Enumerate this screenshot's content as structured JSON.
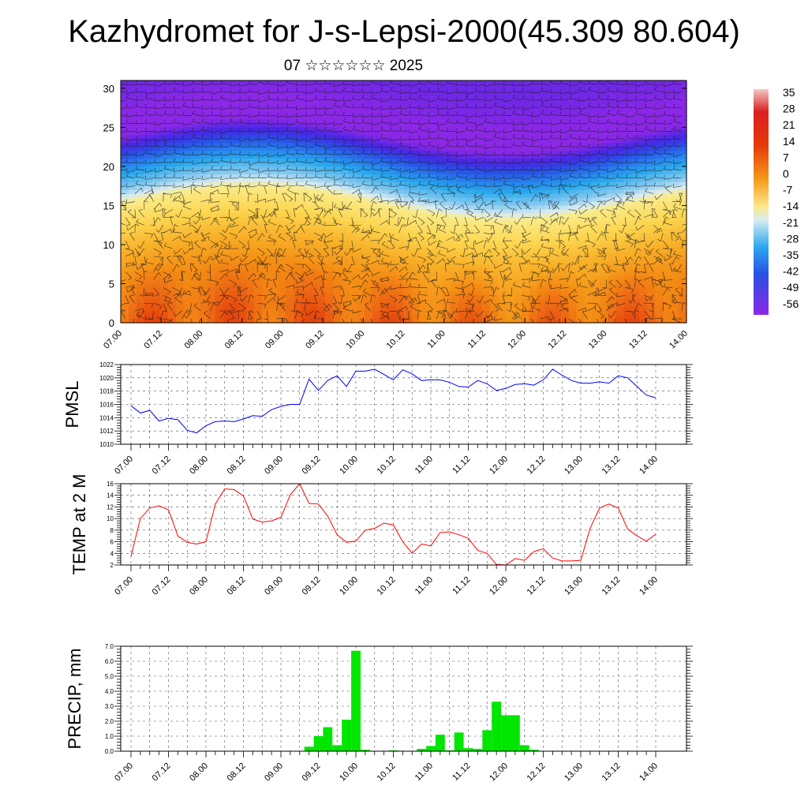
{
  "title": "Kazhydromet for J-s-Lepsi-2000(45.309 80.604)",
  "subtitle": "07 ☆☆☆☆☆☆ 2025",
  "colorbar_labels": [
    "35",
    "28",
    "21",
    "14",
    "7",
    "0",
    "-7",
    "-14",
    "-21",
    "-28",
    "-35",
    "-42",
    "-49",
    "-56"
  ],
  "chart_data": [
    {
      "type": "heatmap",
      "title": "",
      "ylabel": "",
      "y_ticks": [
        0,
        5,
        10,
        15,
        20,
        25,
        30
      ],
      "ylim": [
        0,
        31
      ],
      "x_tick_labels": [
        "07.00",
        "07.12",
        "08.00",
        "08.12",
        "09.00",
        "09.12",
        "10.00",
        "10.12",
        "11.00",
        "11.12",
        "12.00",
        "12.12",
        "13.00",
        "13.12",
        "14.00"
      ],
      "value_range": [
        -56,
        35
      ],
      "overlay": "wind barbs",
      "temperature_profile": {
        "levels": [
          0,
          5,
          10,
          15,
          18,
          20,
          22,
          24,
          26,
          28,
          31
        ],
        "approx_values_c": [
          14,
          8,
          -2,
          -13,
          -24,
          -33,
          -46,
          -56,
          -57,
          -55,
          -53
        ]
      }
    },
    {
      "type": "line",
      "ylabel": "PMSL",
      "ylim": [
        1010,
        1022
      ],
      "y_ticks": [
        1010,
        1012,
        1014,
        1016,
        1018,
        1020,
        1022
      ],
      "x_tick_labels": [
        "07.00",
        "07.12",
        "08.00",
        "08.12",
        "09.00",
        "09.12",
        "10.00",
        "10.12",
        "11.00",
        "11.12",
        "12.00",
        "12.12",
        "13.00",
        "13.12",
        "14.00"
      ],
      "grid": true,
      "line_color": "#0000ff",
      "series": [
        {
          "x_hours": [
            0,
            3,
            6,
            9,
            12,
            15,
            18,
            21,
            24,
            27,
            30,
            33,
            36,
            39,
            42,
            45,
            48,
            51,
            54,
            57,
            60,
            63,
            66,
            69,
            72,
            75,
            78,
            81,
            84,
            87,
            90,
            93,
            96,
            99,
            102,
            105,
            108,
            111,
            114,
            117,
            120,
            123,
            126,
            129,
            132,
            135,
            138,
            141,
            144,
            147,
            150,
            153,
            156,
            159,
            162,
            165,
            168
          ],
          "values": [
            1015.8,
            1014.7,
            1015.1,
            1013.5,
            1013.9,
            1013.7,
            1012.1,
            1011.7,
            1012.8,
            1013.4,
            1013.5,
            1013.4,
            1013.8,
            1014.3,
            1014.2,
            1015.2,
            1015.7,
            1016.0,
            1016.0,
            1019.8,
            1018.1,
            1019.6,
            1020.3,
            1018.7,
            1021.0,
            1021.0,
            1021.3,
            1020.5,
            1019.7,
            1021.2,
            1020.6,
            1019.6,
            1019.7,
            1019.7,
            1019.3,
            1018.7,
            1018.6,
            1019.6,
            1019.1,
            1018.1,
            1018.4,
            1019.0,
            1019.1,
            1018.9,
            1019.7,
            1021.3,
            1020.4,
            1019.6,
            1019.2,
            1019.2,
            1019.4,
            1019.2,
            1020.3,
            1020.0,
            1018.7,
            1017.4,
            1017.0
          ]
        }
      ]
    },
    {
      "type": "line",
      "ylabel": "TEMP at 2 M",
      "ylim": [
        2,
        16
      ],
      "y_ticks": [
        2,
        4,
        6,
        8,
        10,
        12,
        14,
        16
      ],
      "x_tick_labels": [
        "07.00",
        "07.12",
        "08.00",
        "08.12",
        "09.00",
        "09.12",
        "10.00",
        "10.12",
        "11.00",
        "11.12",
        "12.00",
        "12.12",
        "13.00",
        "13.12",
        "14.00"
      ],
      "grid": true,
      "line_color": "#ff0000",
      "series": [
        {
          "x_hours": [
            0,
            3,
            6,
            9,
            12,
            15,
            18,
            21,
            24,
            27,
            30,
            33,
            36,
            39,
            42,
            45,
            48,
            51,
            54,
            57,
            60,
            63,
            66,
            69,
            72,
            75,
            78,
            81,
            84,
            87,
            90,
            93,
            96,
            99,
            102,
            105,
            108,
            111,
            114,
            117,
            120,
            123,
            126,
            129,
            132,
            135,
            138,
            141,
            144,
            147,
            150,
            153,
            156,
            159,
            162,
            165,
            168
          ],
          "values": [
            3.5,
            10.0,
            11.8,
            12.2,
            11.5,
            7.0,
            5.9,
            5.6,
            6.0,
            12.5,
            15.1,
            15.0,
            13.9,
            9.9,
            9.4,
            9.6,
            10.2,
            14.1,
            16.0,
            12.6,
            12.5,
            10.4,
            7.2,
            5.9,
            6.1,
            8.0,
            8.3,
            9.2,
            8.9,
            6.0,
            4.0,
            5.6,
            5.3,
            7.6,
            7.7,
            7.2,
            6.6,
            4.5,
            4.0,
            2.1,
            2.0,
            3.1,
            2.8,
            4.3,
            4.8,
            3.2,
            2.7,
            2.7,
            2.8,
            8.3,
            11.8,
            12.5,
            11.8,
            8.2,
            7.0,
            6.1,
            7.3
          ]
        }
      ]
    },
    {
      "type": "bar",
      "ylabel": "PRECIP, mm",
      "ylim": [
        0,
        7
      ],
      "y_ticks": [
        "0.0",
        "1.0",
        "2.0",
        "3.0",
        "4.0",
        "5.0",
        "6.0",
        "7.0"
      ],
      "x_tick_labels": [
        "07.00",
        "07.12",
        "08.00",
        "08.12",
        "09.00",
        "09.12",
        "10.00",
        "10.12",
        "11.00",
        "11.12",
        "12.00",
        "12.12",
        "13.00",
        "13.12",
        "14.00"
      ],
      "grid": true,
      "bar_color": "#00e600",
      "series": [
        {
          "x_hours": [
            57,
            60,
            63,
            66,
            69,
            72,
            75,
            84,
            93,
            96,
            99,
            102,
            105,
            108,
            111,
            114,
            117,
            120,
            123,
            126,
            129
          ],
          "values": [
            0.3,
            1.0,
            1.6,
            0.4,
            2.1,
            6.7,
            0.1,
            0.05,
            0.15,
            0.35,
            1.1,
            0.05,
            1.25,
            0.2,
            0.15,
            1.4,
            3.3,
            2.4,
            2.4,
            0.4,
            0.1
          ]
        }
      ]
    }
  ]
}
